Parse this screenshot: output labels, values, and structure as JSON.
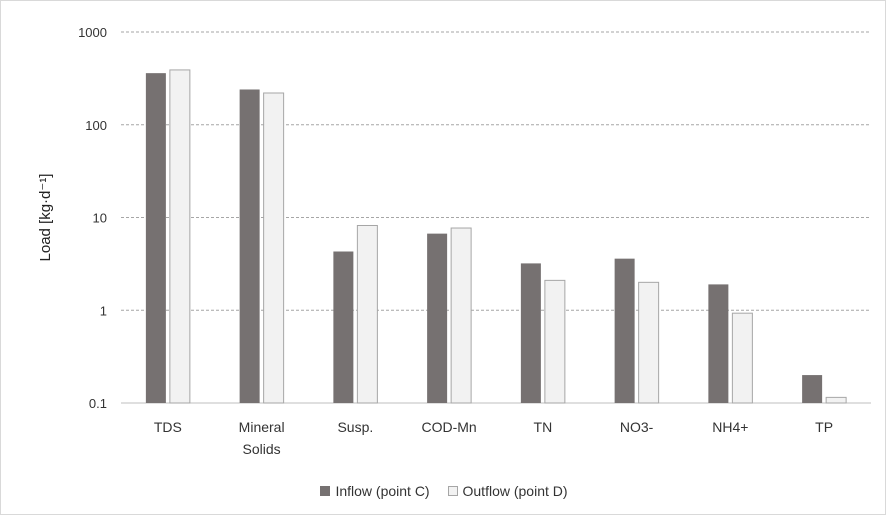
{
  "chart_data": {
    "type": "bar",
    "title": "",
    "xlabel": "",
    "ylabel": "Load [kg·d⁻¹]",
    "yscale": "log",
    "ylim": [
      0.1,
      1000
    ],
    "yticks": [
      "0.1",
      "1",
      "10",
      "100",
      "1000"
    ],
    "grid": "horizontal dashed",
    "legend_position": "bottom",
    "categories": [
      [
        "TDS"
      ],
      [
        "Mineral",
        "Solids"
      ],
      [
        "Susp."
      ],
      [
        "COD-Mn"
      ],
      [
        "TN"
      ],
      [
        "NO3-"
      ],
      [
        "NH4+"
      ],
      [
        "TP"
      ]
    ],
    "series": [
      {
        "name": "Inflow (point C)",
        "color": "#767171",
        "values": [
          360,
          240,
          4.3,
          6.7,
          3.2,
          3.6,
          1.9,
          0.2
        ]
      },
      {
        "name": "Outflow (point D)",
        "color": "#f2f2f2",
        "values": [
          390,
          220,
          8.2,
          7.7,
          2.1,
          2.0,
          0.93,
          0.115
        ]
      }
    ]
  }
}
